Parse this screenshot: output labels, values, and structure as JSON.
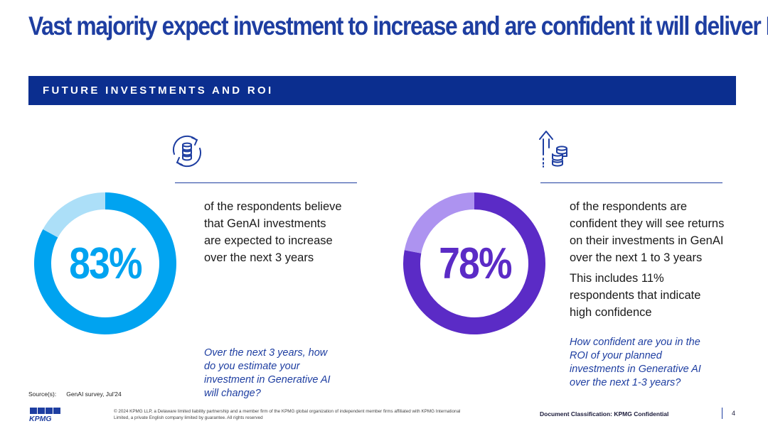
{
  "title": "Vast majority expect investment to increase and are confident it will deliver ROI",
  "banner": "FUTURE INVESTMENTS AND ROI",
  "chart_data": [
    {
      "type": "pie",
      "label": "83%",
      "slices": [
        {
          "name": "expect increase",
          "value": 83,
          "color": "#00a3f0"
        },
        {
          "name": "other",
          "value": 17,
          "color": "#acdff8"
        }
      ],
      "icon": "coins-cycle-icon",
      "description": [
        "of the respondents believe",
        "that GenAI investments",
        "are expected to increase",
        "over the next 3 years"
      ],
      "question": [
        "Over the next 3 years, how",
        "do you estimate your",
        "investment in Generative AI",
        "will change?"
      ],
      "color": "#00a3f0"
    },
    {
      "type": "pie",
      "label": "78%",
      "slices": [
        {
          "name": "confident of returns",
          "value": 78,
          "color": "#5b2bc6"
        },
        {
          "name": "other",
          "value": 22,
          "color": "#ad93f0"
        }
      ],
      "icon": "arrow-up-coins-icon",
      "description": [
        "of the respondents are",
        "confident they will see returns",
        "on their investments in GenAI",
        "over the next 1 to 3 years"
      ],
      "description2": [
        "This includes 11%",
        "respondents that indicate",
        "high confidence"
      ],
      "question": [
        "How confident are you in the",
        "ROI of your planned",
        "investments in Generative AI",
        "over the next 1-3 years?"
      ],
      "color": "#5b2bc6"
    }
  ],
  "footer": {
    "source_label": "Source(s):",
    "source_value": "GenAI survey, Jul'24",
    "logo": "KPMG",
    "copyright": [
      "© 2024 KPMG LLP, a Delaware limited liability partnership and a member firm of the KPMG global organization of independent member firms affiliated with KPMG International",
      "Limited, a private English company limited by guarantee. All rights reserved"
    ],
    "classification": "Document Classification: KPMG Confidential",
    "page": "4"
  }
}
